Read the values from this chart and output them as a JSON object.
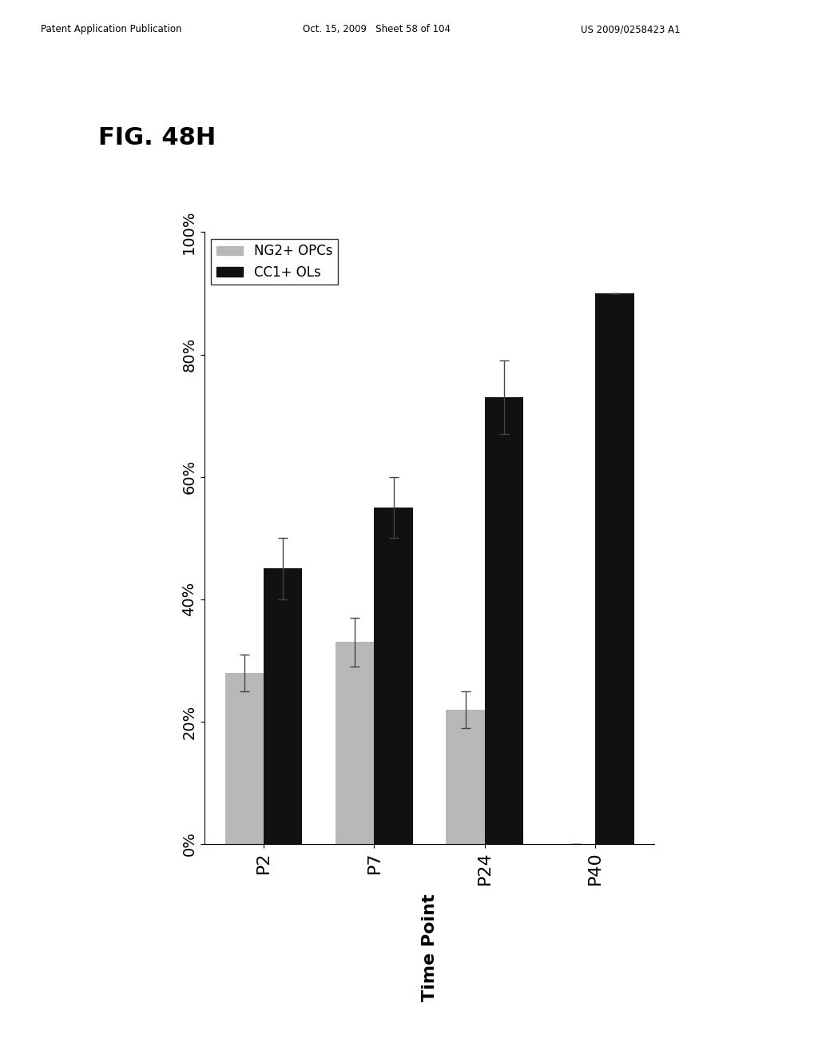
{
  "title": "FIG. 48H",
  "categories": [
    "P2",
    "P7",
    "P24",
    "P40"
  ],
  "ng2_values": [
    28,
    33,
    22,
    0
  ],
  "ng2_errors": [
    3,
    4,
    3,
    0
  ],
  "cc1_values": [
    45,
    55,
    73,
    90
  ],
  "cc1_errors": [
    5,
    5,
    6,
    0
  ],
  "ng2_color": "#b8b8b8",
  "cc1_color": "#111111",
  "ylim": [
    0,
    100
  ],
  "yticks": [
    0,
    20,
    40,
    60,
    80,
    100
  ],
  "yticklabels": [
    "0%",
    "20%",
    "40%",
    "60%",
    "80%",
    "100%"
  ],
  "xlabel": "Time Point",
  "legend_label_ng2": "NG2+ OPCs",
  "legend_label_cc1": "CC1+ OLs",
  "bar_width": 0.35,
  "background_color": "#ffffff",
  "header_left": "Patent Application Publication",
  "header_mid": "Oct. 15, 2009   Sheet 58 of 104",
  "header_right": "US 2009/0258423 A1",
  "fig_title": "FIG. 48H"
}
